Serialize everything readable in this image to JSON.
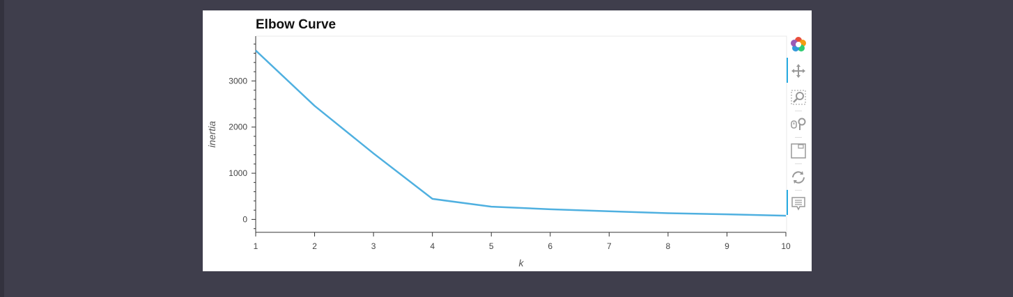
{
  "chart_data": {
    "type": "line",
    "title": "Elbow Curve",
    "xlabel": "k",
    "ylabel": "inertia",
    "x": [
      1,
      2,
      3,
      4,
      5,
      6,
      7,
      8,
      9,
      10
    ],
    "series": [
      {
        "values": [
          3660,
          2460,
          1430,
          445,
          275,
          220,
          175,
          135,
          110,
          80
        ]
      }
    ],
    "xlim": [
      1,
      10
    ],
    "ylim": [
      -280,
      3970
    ],
    "x_ticks": [
      "1",
      "2",
      "3",
      "4",
      "5",
      "6",
      "7",
      "8",
      "9",
      "10"
    ],
    "y_ticks": [
      "0",
      "1000",
      "2000",
      "3000"
    ],
    "y_tick_values": [
      0,
      1000,
      2000,
      3000
    ],
    "grid": false,
    "line_color": "#4fb0e0"
  },
  "toolbar": {
    "tools": [
      "bokeh-logo-icon",
      "pan-icon",
      "box-zoom-icon",
      "wheel-zoom-icon",
      "save-icon",
      "reset-icon",
      "hover-icon"
    ]
  }
}
